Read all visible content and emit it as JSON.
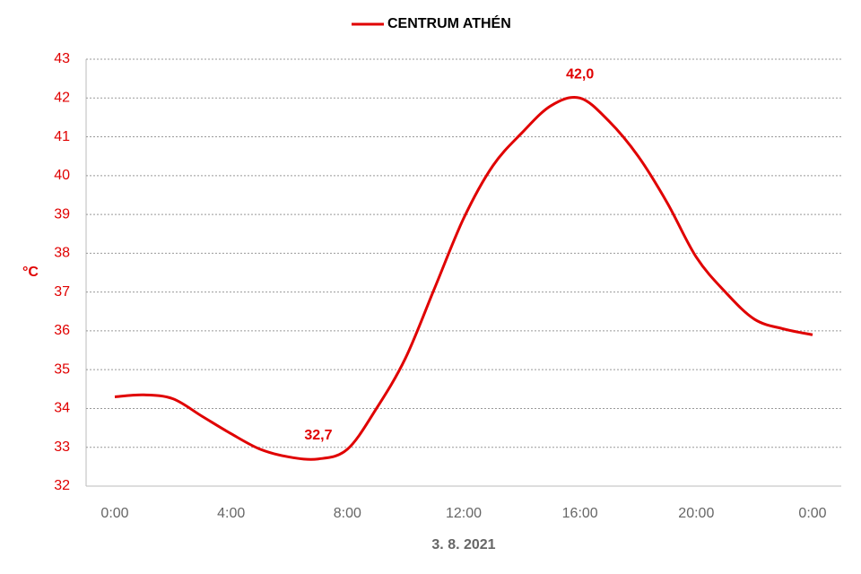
{
  "chart_data": {
    "type": "line",
    "x_label": "3. 8. 2021",
    "y_label": "°C",
    "categories": [
      "0:00",
      null,
      null,
      null,
      "4:00",
      null,
      null,
      null,
      "8:00",
      null,
      null,
      null,
      "12:00",
      null,
      null,
      null,
      "16:00",
      null,
      null,
      null,
      "20:00",
      null,
      null,
      null,
      "0:00"
    ],
    "series": [
      {
        "name": "CENTRUM ATHÉN",
        "color": "#e00000",
        "values": [
          34.3,
          34.35,
          34.25,
          33.8,
          33.35,
          32.95,
          32.75,
          32.7,
          32.95,
          34.0,
          35.3,
          37.1,
          38.9,
          40.25,
          41.1,
          41.8,
          42.0,
          41.4,
          40.5,
          39.3,
          37.9,
          37.0,
          36.3,
          36.05,
          35.9
        ],
        "value_labels": [
          null,
          null,
          null,
          null,
          null,
          null,
          null,
          "32,7",
          null,
          null,
          null,
          null,
          null,
          null,
          null,
          null,
          "42,0",
          null,
          null,
          null,
          null,
          null,
          null,
          null,
          null
        ]
      }
    ],
    "ylim": [
      32,
      43
    ],
    "yticks": [
      32,
      33,
      34,
      35,
      36,
      37,
      38,
      39,
      40,
      41,
      42,
      43
    ],
    "grid": true
  }
}
